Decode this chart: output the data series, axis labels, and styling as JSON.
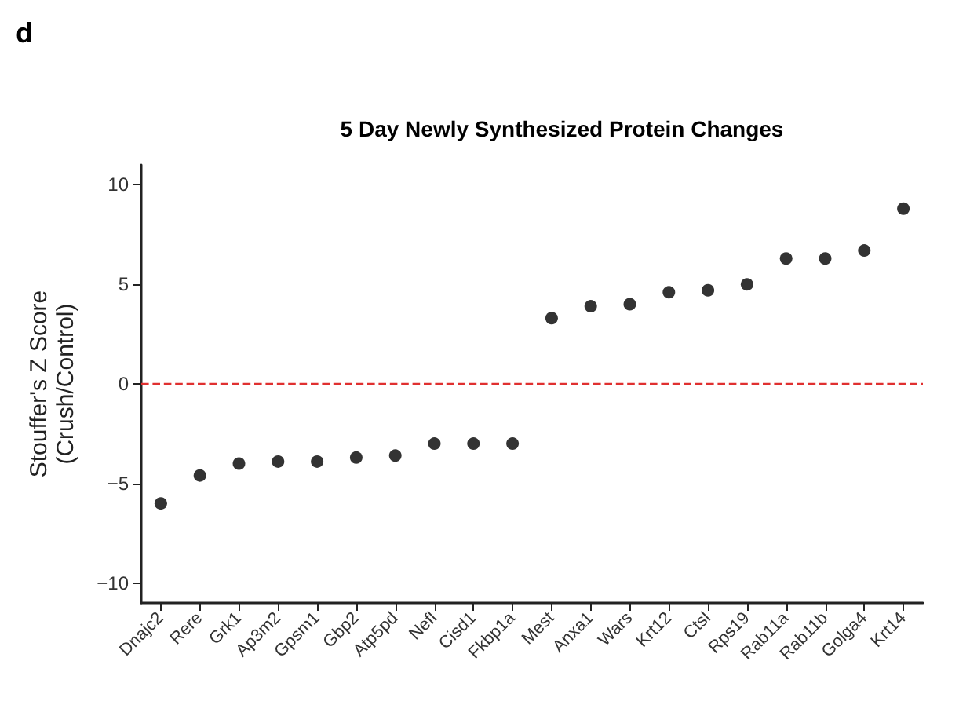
{
  "chart_data": {
    "type": "scatter",
    "title": "5 Day Newly Synthesized Protein Changes",
    "ylabel": "Stouffer's Z Score\n(Crush/Control)",
    "annotations": [
      "d"
    ],
    "categories": [
      "Dnajc2",
      "Rere",
      "Grk1",
      "Ap3m2",
      "Gpsm1",
      "Gbp2",
      "Atp5pd",
      "Nefl",
      "Cisd1",
      "Fkbp1a",
      "Mest",
      "Anxa1",
      "Wars",
      "Krt12",
      "Ctsl",
      "Rps19",
      "Rab11a",
      "Rab11b",
      "Golga4",
      "Krt14"
    ],
    "values": [
      -6.0,
      -4.6,
      -4.0,
      -3.9,
      -3.9,
      -3.7,
      -3.6,
      -3.0,
      -3.0,
      -3.0,
      3.3,
      3.9,
      4.0,
      4.6,
      4.7,
      5.0,
      6.3,
      6.3,
      6.7,
      8.8
    ],
    "color": "#000000",
    "marker": "circle",
    "grid": false,
    "ylim": [
      -11,
      11
    ],
    "yticks": [
      -10,
      -5,
      0,
      5,
      10
    ],
    "ref_lines": [
      {
        "axis": "y",
        "value": 0,
        "color": "#e03030",
        "line_style": "dashed"
      }
    ]
  }
}
